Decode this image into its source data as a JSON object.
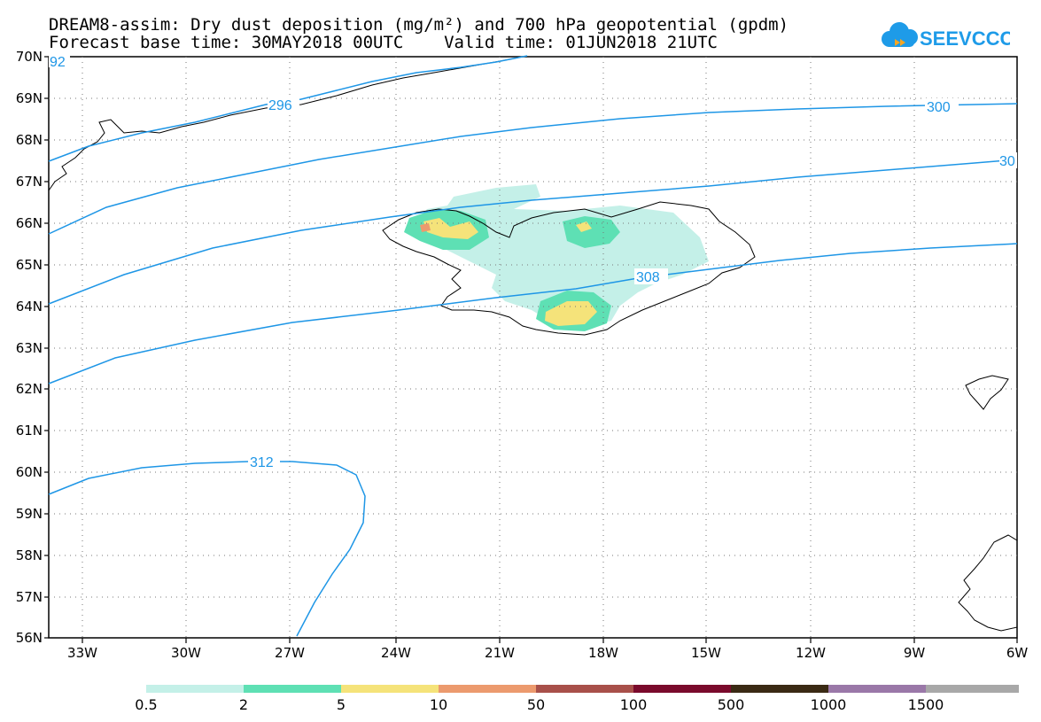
{
  "header": {
    "title_line1": "DREAM8-assim: Dry dust deposition (mg/m²) and 700 hPa geopotential (gpdm)",
    "title_line2": "Forecast base time: 30MAY2018 00UTC    Valid time: 01JUN2018 21UTC"
  },
  "logo": {
    "text": "SEEVCCC",
    "color": "#1e9be8",
    "accent": "#f5a623"
  },
  "map": {
    "lat_labels": [
      "70N",
      "69N",
      "68N",
      "67N",
      "66N",
      "65N",
      "64N",
      "63N",
      "62N",
      "61N",
      "60N",
      "59N",
      "58N",
      "57N",
      "56N"
    ],
    "lon_labels": [
      "33W",
      "30W",
      "27W",
      "24W",
      "21W",
      "18W",
      "15W",
      "12W",
      "9W",
      "6W"
    ],
    "contour_labels": [
      "92",
      "296",
      "300",
      "30",
      "308",
      "312"
    ],
    "contour_color": "#1e96e6"
  },
  "legend": {
    "colors": [
      "#c4f0e8",
      "#5ee0b4",
      "#f5e37a",
      "#ec9a6e",
      "#a8504a",
      "#7a0a2c",
      "#3a2a14",
      "#9a78a8",
      "#a8a8a8"
    ],
    "labels": [
      "0.5",
      "2",
      "5",
      "10",
      "50",
      "100",
      "500",
      "1000",
      "1500"
    ]
  }
}
